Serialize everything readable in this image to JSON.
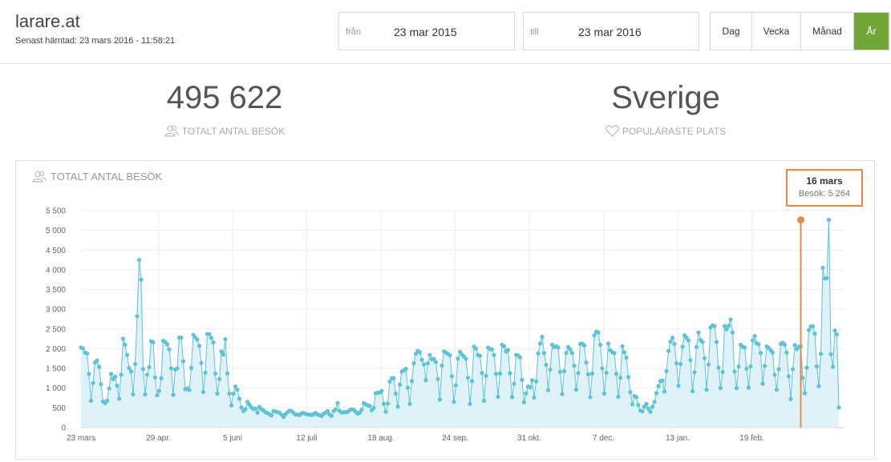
{
  "header": {
    "title": "larare.at",
    "subtitle": "Senast hämtad: 23 mars 2016 - 11:58:21",
    "from_label": "från",
    "from_value": "23 mar 2015",
    "to_label": "till",
    "to_value": "23 mar 2016",
    "periods": [
      "Dag",
      "Vecka",
      "Månad",
      "År"
    ],
    "active_period": "År"
  },
  "stats": {
    "total_value": "495 622",
    "total_label": "TOTALT ANTAL BESÖK",
    "place_value": "Sverige",
    "place_label": "POPULÄRASTE PLATS"
  },
  "chart_panel": {
    "title": "TOTALT ANTAL BESÖK",
    "tooltip_date": "16 mars",
    "tooltip_value": "Besök: 5 264"
  },
  "colors": {
    "line": "#5cc3d8",
    "fill": "#dff2f8",
    "accent": "#72a63a",
    "marker": "#e58a4a"
  },
  "chart_data": {
    "type": "area",
    "title": "TOTALT ANTAL BESÖK",
    "xlabel": "",
    "ylabel": "",
    "ylim": [
      0,
      5500
    ],
    "yticks": [
      0,
      500,
      1000,
      1500,
      2000,
      2500,
      3000,
      3500,
      4000,
      4500,
      5000,
      5500
    ],
    "ytick_labels": [
      "0",
      "500",
      "1 000",
      "1 500",
      "2 000",
      "2 500",
      "3 000",
      "3 500",
      "4 000",
      "4 500",
      "5 000",
      "5 500"
    ],
    "xtick_labels": [
      "23 mars",
      "29 apr.",
      "5 juni",
      "12 juli",
      "18 aug.",
      "24 sep.",
      "31 okt.",
      "7 dec.",
      "13 jan.",
      "19 feb."
    ],
    "xtick_day_index": [
      0,
      37,
      74,
      111,
      148,
      185,
      222,
      259,
      296,
      333
    ],
    "highlight": {
      "day_index": 359,
      "date": "16 mars",
      "value": 5264
    },
    "series": [
      {
        "values": [
          2030,
          2010,
          1900,
          1880,
          1360,
          680,
          1130,
          1650,
          1700,
          1540,
          1100,
          660,
          620,
          680,
          990,
          1360,
          1230,
          1290,
          1060,
          730,
          1340,
          2250,
          2100,
          1840,
          1510,
          1420,
          840,
          1610,
          2820,
          4250,
          3750,
          1480,
          840,
          1340,
          1530,
          2190,
          2160,
          1270,
          820,
          930,
          1250,
          2200,
          2170,
          2110,
          1980,
          1500,
          830,
          1470,
          1500,
          2280,
          2280,
          1680,
          970,
          990,
          950,
          1510,
          2350,
          2290,
          2230,
          2070,
          1640,
          900,
          1390,
          2370,
          2370,
          2270,
          2160,
          1370,
          860,
          1230,
          1930,
          1850,
          2240,
          1370,
          860,
          560,
          860,
          1040,
          960,
          730,
          510,
          420,
          470,
          650,
          580,
          510,
          470,
          480,
          380,
          520,
          470,
          440,
          390,
          370,
          340,
          310,
          420,
          410,
          390,
          380,
          330,
          270,
          340,
          390,
          430,
          420,
          370,
          330,
          330,
          320,
          360,
          370,
          350,
          330,
          330,
          320,
          340,
          370,
          330,
          320,
          290,
          350,
          380,
          420,
          330,
          300,
          420,
          460,
          620,
          420,
          380,
          390,
          390,
          400,
          440,
          460,
          450,
          400,
          350,
          380,
          450,
          620,
          590,
          560,
          550,
          440,
          500,
          870,
          880,
          890,
          930,
          600,
          400,
          610,
          1170,
          1250,
          1250,
          860,
          530,
          1090,
          1420,
          1450,
          1490,
          1010,
          600,
          1180,
          1630,
          1870,
          1940,
          1910,
          1720,
          1600,
          1200,
          1630,
          1840,
          1730,
          1740,
          1660,
          1230,
          710,
          1570,
          1930,
          1900,
          1870,
          1830,
          1300,
          650,
          1070,
          1750,
          1920,
          1850,
          1800,
          1740,
          1260,
          600,
          1180,
          2050,
          2000,
          1840,
          1820,
          1380,
          680,
          1310,
          2030,
          1990,
          1980,
          1840,
          1360,
          780,
          1370,
          2100,
          2060,
          1930,
          1970,
          1380,
          770,
          1110,
          1840,
          1830,
          1780,
          1210,
          640,
          870,
          1040,
          1020,
          1200,
          760,
          1170,
          1880,
          2130,
          2300,
          1890,
          1590,
          950,
          1470,
          2100,
          2040,
          2060,
          2030,
          1410,
          850,
          1430,
          1890,
          2040,
          1980,
          1890,
          1570,
          960,
          1380,
          2120,
          2130,
          2080,
          1650,
          1350,
          770,
          1370,
          2340,
          2430,
          2410,
          2100,
          1500,
          860,
          1390,
          2130,
          1960,
          1910,
          1890,
          1360,
          780,
          1260,
          2060,
          1910,
          1770,
          1280,
          900,
          590,
          800,
          770,
          570,
          430,
          410,
          530,
          600,
          480,
          400,
          530,
          650,
          870,
          1050,
          1180,
          1190,
          910,
          1430,
          1940,
          2180,
          2280,
          2120,
          1630,
          1060,
          1610,
          2050,
          2340,
          2280,
          2210,
          1710,
          920,
          1400,
          2040,
          2410,
          2220,
          2170,
          1760,
          960,
          1600,
          2540,
          2590,
          2570,
          2170,
          1520,
          1000,
          1410,
          2570,
          2490,
          2580,
          2740,
          2410,
          1420,
          1000,
          1550,
          2100,
          2050,
          2030,
          1490,
          1010,
          1550,
          2210,
          2320,
          2140,
          2110,
          1890,
          1110,
          1560,
          2060,
          2020,
          1960,
          1900,
          1340,
          960,
          1480,
          2120,
          2150,
          2100,
          1900,
          1300,
          720,
          1480,
          2090,
          1990,
          2050,
          2060,
          1260,
          870,
          1520,
          2470,
          2560,
          2570,
          2380,
          1550,
          1050,
          1870,
          4050,
          3780,
          3790,
          5264,
          1860,
          1540,
          2460,
          2360,
          510
        ]
      }
    ]
  }
}
